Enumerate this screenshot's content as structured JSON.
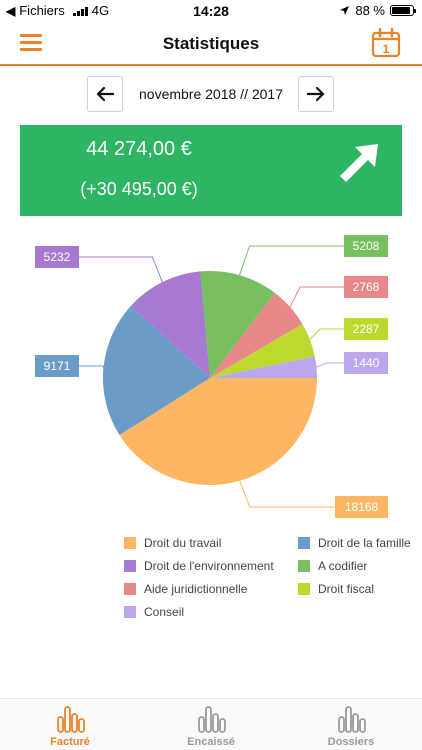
{
  "status_bar": {
    "carrier": "Fichiers",
    "network": "4G",
    "time": "14:28",
    "battery": "88 %",
    "battery_level": 0.88
  },
  "nav": {
    "title": "Statistiques",
    "menu_icon": "hamburger-icon",
    "calendar_icon": "calendar-icon",
    "calendar_day": "1"
  },
  "period": {
    "label": "novembre 2018 // 2017",
    "prev_icon": "arrow-left-icon",
    "next_icon": "arrow-right-icon"
  },
  "summary": {
    "amount": "44 274,00 €",
    "delta": "(+30 495,00 €)",
    "trend_icon": "arrow-up-right-icon",
    "color": "#2db564"
  },
  "chart_data": {
    "type": "pie",
    "slices": [
      {
        "name": "Conseil",
        "value": 1440,
        "label": "1440",
        "color": "#bba8ec"
      },
      {
        "name": "Droit fiscal",
        "value": 2287,
        "label": "2287",
        "color": "#bcd92e"
      },
      {
        "name": "Aide juridictionnelle",
        "value": 2768,
        "label": "2768",
        "color": "#e8888a"
      },
      {
        "name": "A codifier",
        "value": 5208,
        "label": "5208",
        "color": "#78bf5f"
      },
      {
        "name": "Droit de l'environnement",
        "value": 5232,
        "label": "5232",
        "color": "#a67ad1"
      },
      {
        "name": "Droit de la famille",
        "value": 9171,
        "label": "9171",
        "color": "#6a9cc7"
      },
      {
        "name": "Droit du travail",
        "value": 18168,
        "label": "18168",
        "color": "#fdb664"
      }
    ],
    "legend": [
      "Droit du travail",
      "Droit de la famille",
      "Droit de l'environnement",
      "A codifier",
      "Aide juridictionnelle",
      "Droit fiscal",
      "Conseil"
    ]
  },
  "tabs": [
    {
      "label": "Facturé",
      "icon": "bar-chart-icon",
      "active": true
    },
    {
      "label": "Encaissé",
      "icon": "bar-chart-icon",
      "active": false
    },
    {
      "label": "Dossiers",
      "icon": "bar-chart-icon",
      "active": false
    }
  ],
  "colors": {
    "accent": "#e8832a",
    "tab_inactive": "#9a9a9a"
  }
}
